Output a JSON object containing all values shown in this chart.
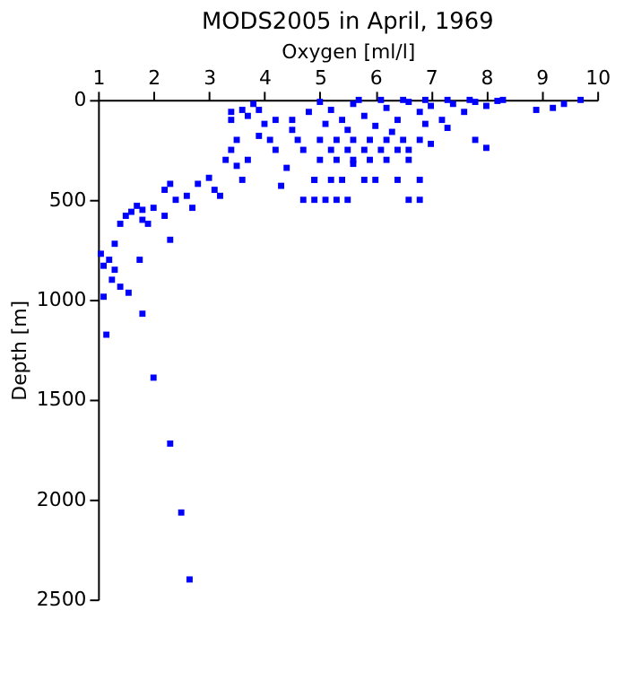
{
  "chart_data": {
    "type": "scatter",
    "title": "MODS2005 in April, 1969",
    "xlabel": "Oxygen [ml/l]",
    "ylabel": "Depth [m]",
    "xlim": [
      1,
      10
    ],
    "xticks": [
      1,
      2,
      3,
      4,
      5,
      6,
      7,
      8,
      9,
      10
    ],
    "ylim": [
      2500,
      0
    ],
    "yticks": [
      0,
      500,
      1000,
      1500,
      2000,
      2500
    ],
    "grid": false,
    "marker": "square",
    "series": [
      {
        "color": "#0000ff",
        "x": [
          1.1,
          1.15,
          1.4,
          1.55,
          1.8,
          2.0,
          2.3,
          2.5,
          2.65,
          1.05,
          1.2,
          1.3,
          1.1,
          1.25,
          1.75,
          1.4,
          1.5,
          1.6,
          1.7,
          1.8,
          1.3,
          2.0,
          2.2,
          2.4,
          2.3,
          2.6,
          2.8,
          3.0,
          2.7,
          3.1,
          3.2,
          2.3,
          2.2,
          1.9,
          1.8,
          3.3,
          3.4,
          3.5,
          3.4,
          3.6,
          3.8,
          3.5,
          3.6,
          3.9,
          3.7,
          4.0,
          4.3,
          4.2,
          4.4,
          4.5,
          4.6,
          4.8,
          4.7,
          4.9,
          4.7,
          4.9,
          5.1,
          5.3,
          5.5,
          6.6,
          6.8,
          4.9,
          5.2,
          5.4,
          5.8,
          6.0,
          6.4,
          6.8,
          5.0,
          5.3,
          5.6,
          5.9,
          6.2,
          6.6,
          5.6,
          5.2,
          5.5,
          5.8,
          6.1,
          6.4,
          6.6,
          5.0,
          5.3,
          5.6,
          5.9,
          6.2,
          6.5,
          6.8,
          7.0,
          5.0,
          5.2,
          5.4,
          5.6,
          5.8,
          6.0,
          6.2,
          6.4,
          6.6,
          6.8,
          7.0,
          7.2,
          7.4,
          7.6,
          7.8,
          8.0,
          8.2,
          7.8,
          8.0,
          5.5,
          6.3,
          6.9,
          7.3,
          5.1,
          5.7,
          6.1,
          6.5,
          6.9,
          7.3,
          7.7,
          8.3,
          8.9,
          9.2,
          9.4,
          9.7,
          4.5,
          4.2,
          3.9,
          4.1,
          3.4,
          3.7
        ],
        "values": [
          985,
          1175,
          935,
          965,
          1070,
          1390,
          1720,
          2065,
          2400,
          770,
          800,
          850,
          830,
          900,
          800,
          620,
          580,
          560,
          530,
          600,
          720,
          540,
          450,
          500,
          420,
          480,
          420,
          390,
          540,
          450,
          480,
          700,
          580,
          620,
          550,
          300,
          250,
          200,
          100,
          50,
          20,
          330,
          400,
          180,
          300,
          120,
          430,
          250,
          340,
          100,
          200,
          60,
          250,
          400,
          500,
          500,
          500,
          500,
          500,
          500,
          500,
          400,
          400,
          400,
          400,
          400,
          400,
          400,
          300,
          300,
          300,
          300,
          300,
          300,
          320,
          250,
          250,
          250,
          250,
          250,
          250,
          200,
          200,
          200,
          200,
          200,
          200,
          200,
          220,
          10,
          50,
          100,
          20,
          80,
          130,
          40,
          100,
          10,
          60,
          30,
          100,
          20,
          60,
          10,
          30,
          5,
          200,
          240,
          150,
          160,
          120,
          140,
          120,
          0,
          0,
          0,
          0,
          0,
          0,
          0,
          50,
          40,
          20,
          0,
          150,
          100,
          50,
          200,
          60,
          80
        ]
      }
    ]
  }
}
